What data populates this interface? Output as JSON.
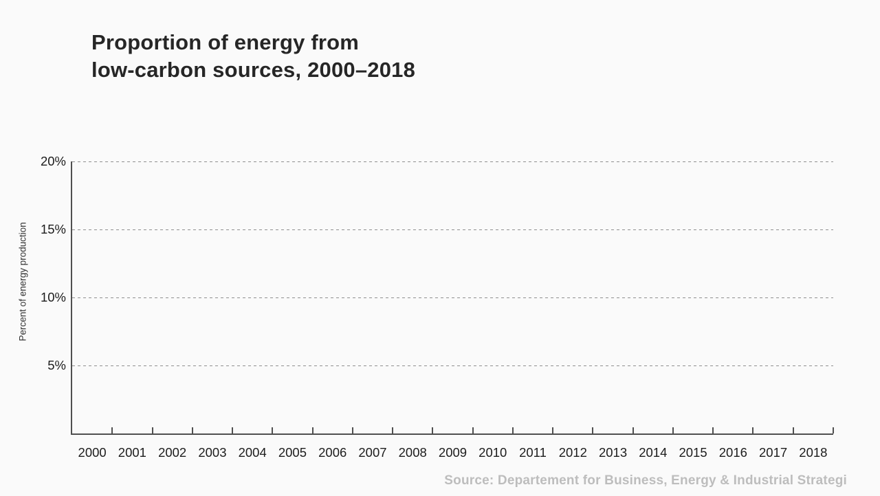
{
  "page": {
    "background_color": "#fafafa"
  },
  "title": {
    "line1": "Proportion of energy from",
    "line2": "low-carbon sources, 2000–2018"
  },
  "source_note": "Source: Departement for Business, Energy & Industrial Strategi",
  "chart_data": {
    "type": "line",
    "title": "Proportion of energy from low-carbon sources, 2000–2018",
    "xlabel": "",
    "ylabel": "Percent of energy production",
    "categories": [
      "2000",
      "2001",
      "2002",
      "2003",
      "2004",
      "2005",
      "2006",
      "2007",
      "2008",
      "2009",
      "2010",
      "2011",
      "2012",
      "2013",
      "2014",
      "2015",
      "2016",
      "2017",
      "2018"
    ],
    "series": [],
    "ylim": [
      0,
      20
    ],
    "ytick_values": [
      5,
      10,
      15,
      20
    ],
    "ytick_labels": [
      "5%",
      "10%",
      "15%",
      "20%"
    ],
    "grid": "horizontal-dashed",
    "legend_position": "none"
  },
  "colors": {
    "background": "#fafafa",
    "title_text": "#262626",
    "axis_line": "#4f4f4f",
    "gridline": "#8f8f8f",
    "tick_label": "#1c1c1c",
    "axis_label": "#333333",
    "source_text": "#bdbdbd"
  }
}
